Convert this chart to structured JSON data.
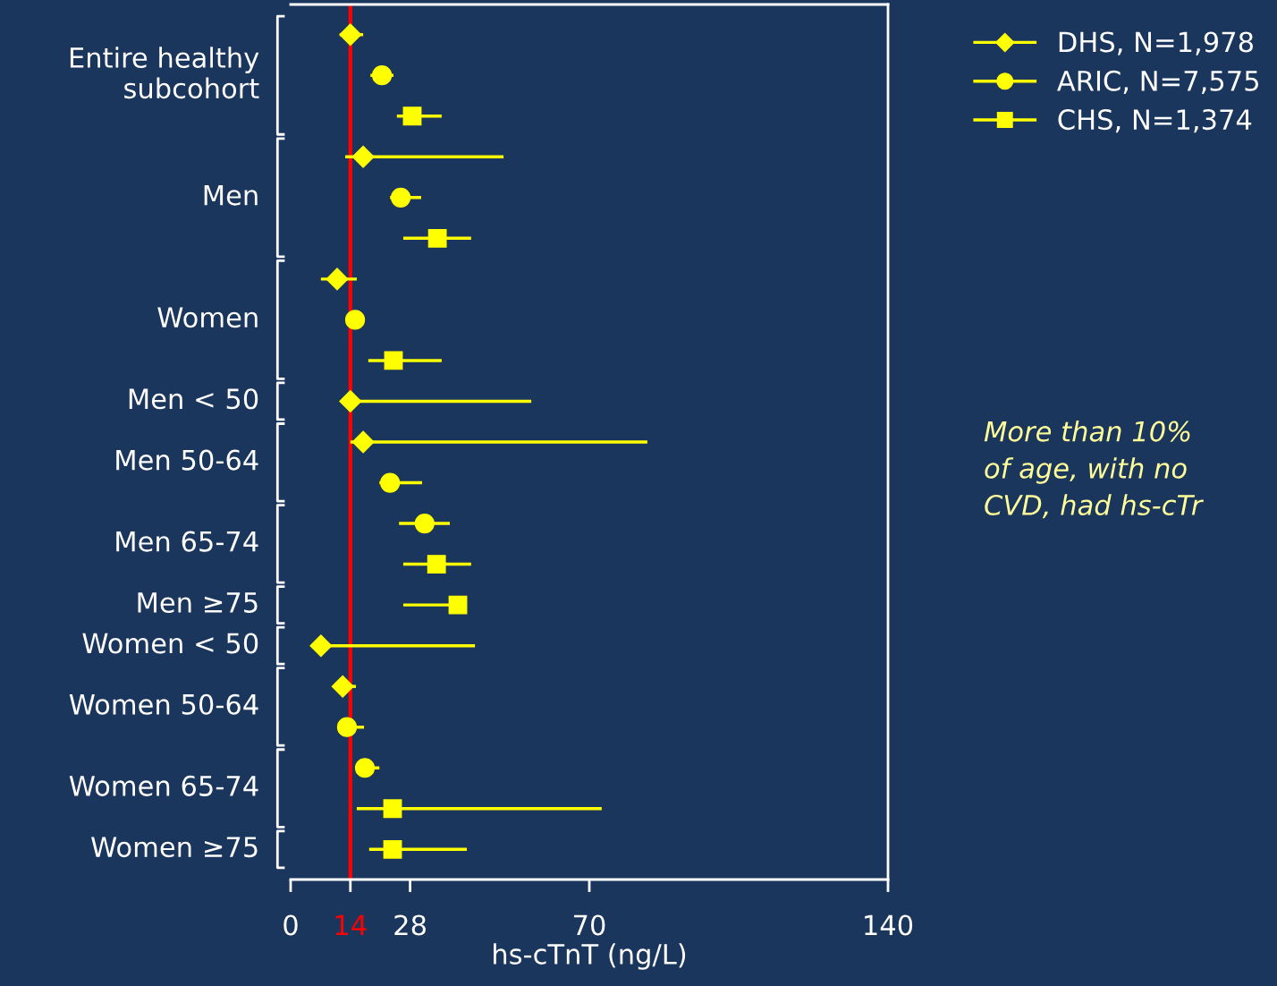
{
  "chart_data": {
    "type": "scatter",
    "orientation": "horizontal",
    "categories": [
      null,
      "Entire healthy\nsubcohort",
      null,
      null,
      "Men",
      null,
      null,
      "Women",
      null,
      "Men < 50",
      "Men 50-64",
      null,
      "Men 65-74",
      null,
      "Men ≥75",
      "Women < 50",
      "Women 50-64",
      null,
      "Women 65-74",
      null,
      "Women ≥75"
    ],
    "series": [
      {
        "name": "DHS, N=1,978",
        "color": "#ffff00",
        "marker": "diamond",
        "values": [
          14.0,
          null,
          null,
          17.0,
          null,
          null,
          10.9,
          null,
          null,
          14.0,
          17.0,
          null,
          null,
          null,
          null,
          7.1,
          12.2,
          null,
          null,
          null,
          null
        ],
        "errors": [
          [
            11.5,
            17.0
          ],
          null,
          null,
          [
            12.8,
            49.9
          ],
          null,
          null,
          [
            7.1,
            15.5
          ],
          null,
          null,
          [
            11.9,
            56.4
          ],
          [
            14.0,
            83.6
          ],
          null,
          null,
          null,
          null,
          [
            5.0,
            43.2
          ],
          [
            10.1,
            15.3
          ],
          null,
          null,
          null,
          null
        ]
      },
      {
        "name": "ARIC, N=7,575",
        "color": "#ffff00",
        "marker": "circle",
        "values": [
          null,
          21.4,
          null,
          null,
          25.8,
          null,
          null,
          15.1,
          null,
          null,
          null,
          23.3,
          31.4,
          null,
          null,
          null,
          null,
          13.2,
          17.4,
          null,
          null
        ],
        "errors": [
          null,
          [
            18.7,
            24.1
          ],
          null,
          null,
          [
            23.3,
            30.6
          ],
          null,
          null,
          null,
          null,
          null,
          null,
          [
            20.8,
            30.8
          ],
          [
            25.4,
            37.3
          ],
          null,
          null,
          null,
          null,
          [
            11.1,
            17.2
          ],
          [
            15.3,
            20.8
          ],
          null,
          null
        ]
      },
      {
        "name": "CHS, N=1,374",
        "color": "#ffff00",
        "marker": "square",
        "values": [
          null,
          null,
          28.5,
          null,
          null,
          34.4,
          null,
          null,
          24.1,
          null,
          null,
          null,
          null,
          34.2,
          39.2,
          null,
          null,
          null,
          null,
          23.9,
          23.9
        ],
        "errors": [
          null,
          null,
          [
            24.9,
            35.4
          ],
          null,
          null,
          [
            26.4,
            42.3
          ],
          null,
          null,
          [
            18.2,
            35.4
          ],
          null,
          null,
          null,
          null,
          [
            26.4,
            42.3
          ],
          [
            26.4,
            41.1
          ],
          null,
          null,
          null,
          null,
          [
            15.5,
            72.9
          ],
          [
            18.4,
            41.3
          ]
        ]
      }
    ],
    "xlim": [
      0,
      140
    ],
    "xticks": [
      0,
      14,
      28,
      70,
      140
    ],
    "xlabel": "hs-cTnT (ng/L)",
    "ref_lines": [
      {
        "axis": "x",
        "value": 14,
        "color": "#ff0000"
      }
    ],
    "grid": false,
    "legend": "top right",
    "annotations": [
      "More than 10%\nof age, with no\nCVD, had hs-cTr"
    ]
  }
}
